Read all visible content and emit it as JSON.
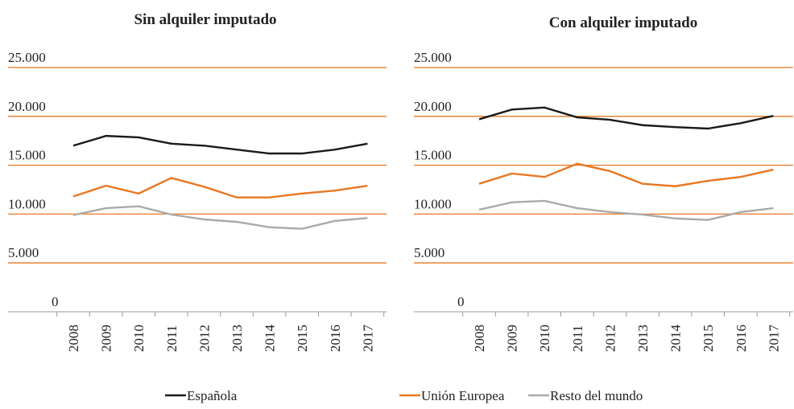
{
  "chart_data": [
    {
      "type": "line",
      "title": "Sin alquiler imputado",
      "categories": [
        "2008",
        "2009",
        "2010",
        "2011",
        "2012",
        "2013",
        "2014",
        "2015",
        "2016",
        "2017"
      ],
      "ylim": [
        0,
        25000
      ],
      "yticks": [
        0,
        {
          "value": 5000,
          "label": "5.000"
        },
        {
          "value": 10000,
          "label": "10.000"
        },
        {
          "value": 15000,
          "label": "15.000"
        },
        {
          "value": 20000,
          "label": "20.000"
        },
        {
          "value": 25000,
          "label": "25.000"
        }
      ],
      "grid": true,
      "series": [
        {
          "name": "Española",
          "color": "#1a1a1a",
          "values": [
            17000,
            18000,
            17850,
            17200,
            17000,
            16600,
            16200,
            16200,
            16600,
            17200
          ]
        },
        {
          "name": "Unión Europea",
          "color": "#e87722",
          "values": [
            11800,
            12900,
            12100,
            13700,
            12800,
            11700,
            11700,
            12100,
            12400,
            12900
          ]
        },
        {
          "name": "Resto del mundo",
          "color": "#aaaaaa",
          "values": [
            9900,
            10600,
            10800,
            9950,
            9450,
            9200,
            8650,
            8500,
            9300,
            9600
          ]
        }
      ]
    },
    {
      "type": "line",
      "title": "Con alquiler imputado",
      "categories": [
        "2008",
        "2009",
        "2010",
        "2011",
        "2012",
        "2013",
        "2014",
        "2015",
        "2016",
        "2017"
      ],
      "ylim": [
        0,
        25000
      ],
      "yticks": [
        0,
        {
          "value": 5000,
          "label": "5.000"
        },
        {
          "value": 10000,
          "label": "10.000"
        },
        {
          "value": 15000,
          "label": "15.000"
        },
        {
          "value": 20000,
          "label": "20.000"
        },
        {
          "value": 25000,
          "label": "25.000"
        }
      ],
      "grid": true,
      "series": [
        {
          "name": "Española",
          "color": "#1a1a1a",
          "values": [
            19700,
            20700,
            20900,
            19900,
            19650,
            19100,
            18900,
            18750,
            19300,
            20050
          ]
        },
        {
          "name": "Unión Europea",
          "color": "#e87722",
          "values": [
            13100,
            14150,
            13800,
            15150,
            14400,
            13100,
            12850,
            13400,
            13800,
            14550
          ]
        },
        {
          "name": "Resto del mundo",
          "color": "#aaaaaa",
          "values": [
            10450,
            11200,
            11350,
            10600,
            10200,
            9950,
            9550,
            9400,
            10200,
            10600
          ]
        }
      ]
    }
  ]
}
